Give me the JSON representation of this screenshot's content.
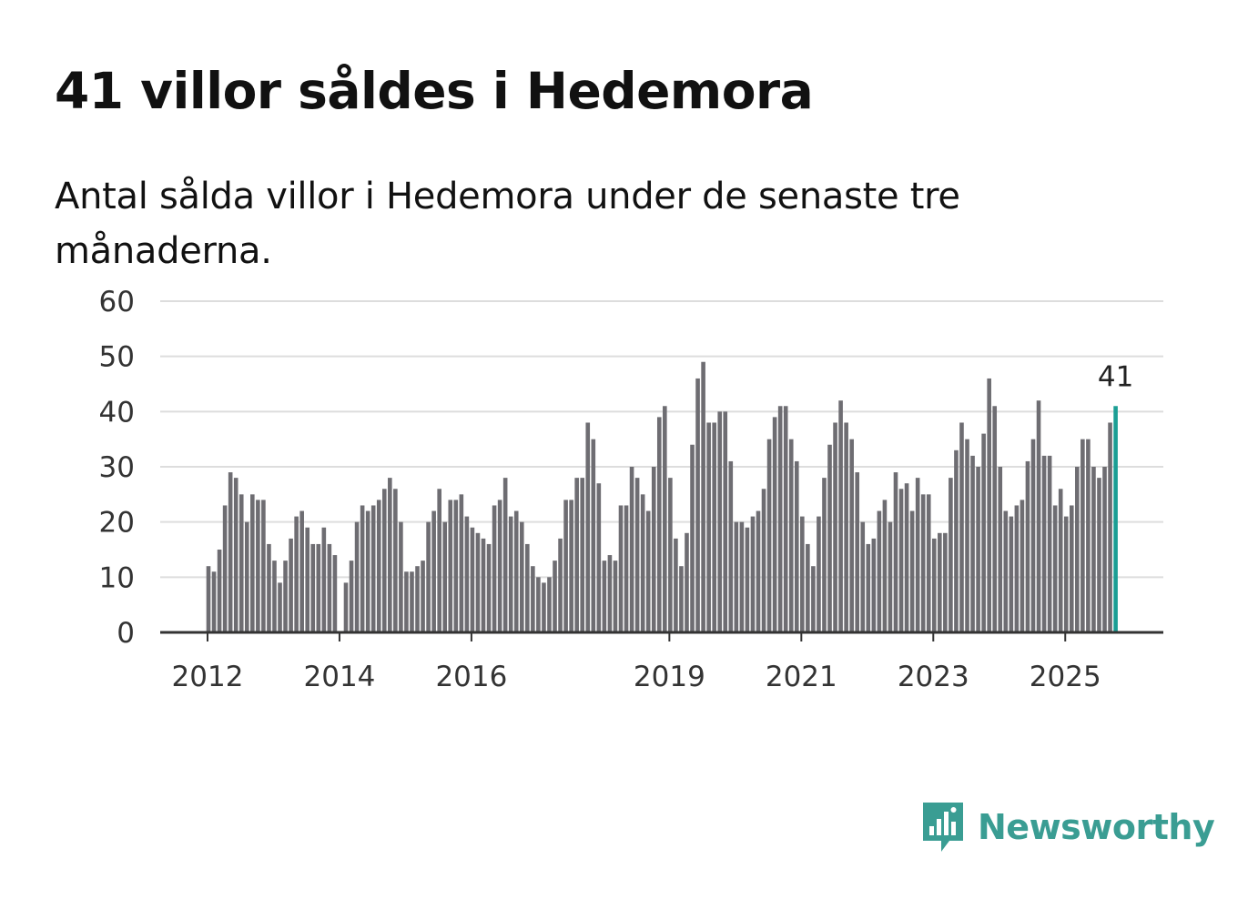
{
  "title": "41 villor såldes i Hedemora",
  "subtitle": "Antal sålda villor i Hedemora under de senaste tre månaderna.",
  "brand": {
    "name": "Newsworthy",
    "color": "#3a9d93",
    "icon": "newsworthy-logo-icon"
  },
  "colors": {
    "bar": "#6e6d72",
    "highlight": "#1b9e94",
    "grid": "#dddddd",
    "axis": "#333333"
  },
  "chart_data": {
    "type": "bar",
    "title": "41 villor såldes i Hedemora",
    "xlabel": "",
    "ylabel": "",
    "ylim": [
      0,
      60
    ],
    "yticks": [
      "0",
      "10",
      "20",
      "30",
      "40",
      "50",
      "60"
    ],
    "start": "2012-01",
    "xticks": [
      {
        "label": "2012",
        "index": 0
      },
      {
        "label": "2014",
        "index": 24
      },
      {
        "label": "2016",
        "index": 48
      },
      {
        "label": "2019",
        "index": 84
      },
      {
        "label": "2021",
        "index": 108
      },
      {
        "label": "2023",
        "index": 132
      },
      {
        "label": "2025",
        "index": 156
      }
    ],
    "values": [
      12,
      11,
      15,
      23,
      29,
      28,
      25,
      20,
      25,
      24,
      24,
      16,
      13,
      9,
      13,
      17,
      21,
      22,
      19,
      16,
      16,
      19,
      16,
      14,
      null,
      9,
      13,
      20,
      23,
      22,
      23,
      24,
      26,
      28,
      26,
      20,
      11,
      11,
      12,
      13,
      20,
      22,
      26,
      20,
      24,
      24,
      25,
      21,
      19,
      18,
      17,
      16,
      23,
      24,
      28,
      21,
      22,
      20,
      16,
      12,
      10,
      9,
      10,
      13,
      17,
      24,
      24,
      28,
      28,
      38,
      35,
      27,
      13,
      14,
      13,
      23,
      23,
      30,
      28,
      25,
      22,
      30,
      39,
      41,
      28,
      17,
      12,
      18,
      34,
      46,
      49,
      38,
      38,
      40,
      40,
      31,
      20,
      20,
      19,
      21,
      22,
      26,
      35,
      39,
      41,
      41,
      35,
      31,
      21,
      16,
      12,
      21,
      28,
      34,
      38,
      42,
      38,
      35,
      29,
      20,
      16,
      17,
      22,
      24,
      20,
      29,
      26,
      27,
      22,
      28,
      25,
      25,
      17,
      18,
      18,
      28,
      33,
      38,
      35,
      32,
      30,
      36,
      46,
      41,
      30,
      22,
      21,
      23,
      24,
      31,
      35,
      42,
      32,
      32,
      23,
      26,
      21,
      23,
      30,
      35,
      35,
      30,
      28,
      30,
      38,
      41
    ],
    "highlight": {
      "index": 165,
      "label": "41"
    }
  }
}
